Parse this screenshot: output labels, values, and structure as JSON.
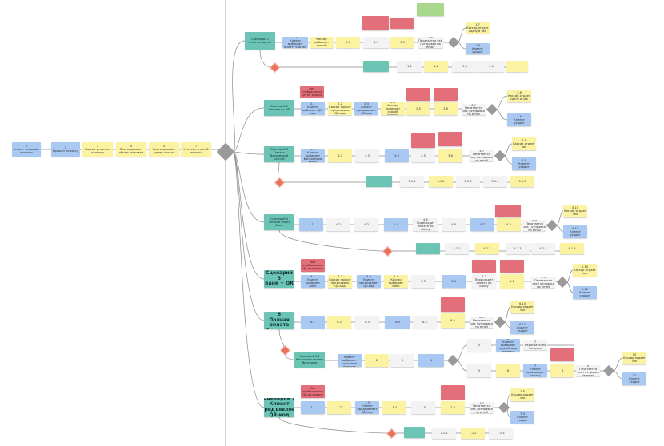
{
  "colors": {
    "client": "#a9c8f2",
    "cashier": "#fbf3a2",
    "system": "#f3f3f3",
    "problem": "#e26f79",
    "scenario": "#6cc4b4",
    "note": "#a9d88c"
  },
  "nodes": [
    {
      "k": "b",
      "t": "1\nКлиент заправил топливо"
    },
    {
      "k": "b",
      "t": "2\nПрошел на кассу"
    },
    {
      "k": "y",
      "t": "3\nКассир уточняет колонку"
    },
    {
      "k": "y",
      "t": "4\nПроговаривает объем заправки"
    },
    {
      "k": "y",
      "t": "5\nПроговаривает сумму оплаты"
    },
    {
      "k": "y",
      "t": "7\nУточняет способ оплаты"
    },
    {
      "k": "t",
      "t": "Сценарий 1\nОплата картой"
    },
    {
      "k": "b",
      "t": "1.1\nКлиент выбирает оплату картой"
    },
    {
      "k": "y",
      "t": "1.2\nКассир выбирает способ оплаты"
    },
    {
      "k": "y",
      "t": "1.3"
    },
    {
      "k": "w",
      "t": "1.4"
    },
    {
      "k": "y",
      "t": "1.5"
    },
    {
      "k": "w",
      "t": "1.6\nПечатается чек / отправка на email"
    },
    {
      "k": "y",
      "t": "1.7\nКассир отдает сдачу и чек"
    },
    {
      "k": "b",
      "t": "1.8\nКлиент уходит"
    },
    {
      "k": "r",
      "t": ""
    },
    {
      "k": "r",
      "t": ""
    },
    {
      "k": "g",
      "t": ""
    },
    {
      "k": "t",
      "t": ""
    },
    {
      "k": "w",
      "t": "1.1"
    },
    {
      "k": "y",
      "t": "1.2"
    },
    {
      "k": "w",
      "t": "1.3"
    },
    {
      "k": "w",
      "t": "1.4"
    },
    {
      "k": "y",
      "t": ""
    },
    {
      "k": "t",
      "t": "Сценарий 2\nОплата по QR"
    },
    {
      "k": "r",
      "t": "Нет отображения QR на экране"
    },
    {
      "k": "b",
      "t": "2.1\nКлиент выбирает QR-код"
    },
    {
      "k": "y",
      "t": "2.2\nКассир просит предъявить QR-код"
    },
    {
      "k": "b",
      "t": "2.3\nКлиент предъявляет QR-код"
    },
    {
      "k": "y",
      "t": "2.4\nКассир выбирает способ оплаты"
    },
    {
      "k": "y",
      "t": "2.5"
    },
    {
      "k": "r",
      "t": ""
    },
    {
      "k": "y",
      "t": "2.6"
    },
    {
      "k": "r",
      "t": ""
    },
    {
      "k": "w",
      "t": "2.7\nПечатается чек / отправка на email"
    },
    {
      "k": "y",
      "t": "2.8\nКассир отдает сдачу и чек"
    },
    {
      "k": "b",
      "t": "2.9\nКлиент уходит"
    },
    {
      "k": "t",
      "t": "Сценарий 3\nОплата банковской картой"
    },
    {
      "k": "b",
      "t": "3.1\nКлиент выбирает банковскую карту"
    },
    {
      "k": "y",
      "t": "3.2"
    },
    {
      "k": "w",
      "t": "3.3"
    },
    {
      "k": "b",
      "t": "3.4"
    },
    {
      "k": "w",
      "t": "3.5"
    },
    {
      "k": "r",
      "t": ""
    },
    {
      "k": "y",
      "t": "3.6"
    },
    {
      "k": "r",
      "t": ""
    },
    {
      "k": "w",
      "t": "3.7\nПечатается чек / отправка на email"
    },
    {
      "k": "y",
      "t": "3.8\nКассир отдает чек"
    },
    {
      "k": "b",
      "t": "3.9\nКлиент уходит"
    },
    {
      "k": "t",
      "t": ""
    },
    {
      "k": "w",
      "t": "3.1.1"
    },
    {
      "k": "y",
      "t": "3.1.2"
    },
    {
      "k": "w",
      "t": "3.1.3"
    },
    {
      "k": "w",
      "t": "3.1.4"
    },
    {
      "k": "y",
      "t": "3.1.5"
    },
    {
      "k": "t",
      "t": "Сценарий 4\nОплата через Банк"
    },
    {
      "k": "b",
      "t": "4.1"
    },
    {
      "k": "w",
      "t": "4.2"
    },
    {
      "k": "w",
      "t": "4.3"
    },
    {
      "k": "b",
      "t": "4.4"
    },
    {
      "k": "w",
      "t": "4.5\nПроисходит оплата по Банку"
    },
    {
      "k": "w",
      "t": "4.6"
    },
    {
      "k": "b",
      "t": "4.7"
    },
    {
      "k": "y",
      "t": "4.8"
    },
    {
      "k": "r",
      "t": ""
    },
    {
      "k": "w",
      "t": "4.9\nПечатается чек / отправка на email"
    },
    {
      "k": "y",
      "t": "4.10\nКассир отдает чек"
    },
    {
      "k": "b",
      "t": "4.11\nКлиент уходит"
    },
    {
      "k": "t",
      "t": ""
    },
    {
      "k": "w",
      "t": "4.1.1"
    },
    {
      "k": "y",
      "t": "4.1.2"
    },
    {
      "k": "w",
      "t": "4.1.3"
    },
    {
      "k": "w",
      "t": "4.1.4"
    },
    {
      "k": "y",
      "t": "4.1.5"
    },
    {
      "k": "t",
      "t": "Сценарий 5\nБанк + QR"
    },
    {
      "k": "r",
      "t": "Нет отображения QR на экране"
    },
    {
      "k": "b",
      "t": "5.1\nКлиент выбирает Банк"
    },
    {
      "k": "y",
      "t": "5.2\nКассир просит предъявить QR-код"
    },
    {
      "k": "b",
      "t": "5.3\nКлиент предъявляет QR-код"
    },
    {
      "k": "y",
      "t": "5.4\nКассир выбирает Банк"
    },
    {
      "k": "w",
      "t": "5.5"
    },
    {
      "k": "b",
      "t": "5.6"
    },
    {
      "k": "w",
      "t": "5.7\nПроисходит оплата по Банку"
    },
    {
      "k": "r",
      "t": ""
    },
    {
      "k": "y",
      "t": "5.8"
    },
    {
      "k": "r",
      "t": ""
    },
    {
      "k": "w",
      "t": "5.9\nПечатается чек / отправка на email"
    },
    {
      "k": "y",
      "t": "5.10\nКассир отдает чек"
    },
    {
      "k": "b",
      "t": "5.11\nКлиент уходит"
    },
    {
      "k": "t",
      "t": "Сценарий 6\nПолная оплата бонусами"
    },
    {
      "k": "b",
      "t": "6.1"
    },
    {
      "k": "y",
      "t": "6.2"
    },
    {
      "k": "w",
      "t": "6.3"
    },
    {
      "k": "b",
      "t": "6.4"
    },
    {
      "k": "w",
      "t": "6.5"
    },
    {
      "k": "y",
      "t": "6.6"
    },
    {
      "k": "r",
      "t": ""
    },
    {
      "k": "w",
      "t": "6.9\nПечатается чек / отправка на email"
    },
    {
      "k": "y",
      "t": "6.10\nКассир отдает чек"
    },
    {
      "k": "b",
      "t": "6.11\nКлиент уходит"
    },
    {
      "k": "t",
      "t": "Сценарий 6.1\nЧастичная оплата бонусами"
    },
    {
      "k": "b",
      "t": "1\nКлиент выбирает списание бонусов"
    },
    {
      "k": "y",
      "t": "2"
    },
    {
      "k": "w",
      "t": "3"
    },
    {
      "k": "b",
      "t": "4"
    },
    {
      "k": "w",
      "t": "5"
    },
    {
      "k": "b",
      "t": "6\nКлиент выбирает другой вид оплаты"
    },
    {
      "k": "w",
      "t": "7\nНедостаточно бонусов"
    },
    {
      "k": "r",
      "t": ""
    },
    {
      "k": "w",
      "t": "5"
    },
    {
      "k": "y",
      "t": "6"
    },
    {
      "k": "b",
      "t": "7\nКлиент производит оплату"
    },
    {
      "k": "y",
      "t": "8"
    },
    {
      "k": "w",
      "t": "9\nПечатается чек / отправка на email"
    },
    {
      "k": "y",
      "t": "10\nКассир отдает чек"
    },
    {
      "k": "b",
      "t": "11\nКлиент уходит"
    },
    {
      "k": "t",
      "t": "Сценарий 7\nКлиент предъявляет QR-код"
    },
    {
      "k": "r",
      "t": "Нет отображения QR на экране"
    },
    {
      "k": "b",
      "t": "7.1"
    },
    {
      "k": "y",
      "t": "7.2"
    },
    {
      "k": "b",
      "t": "7.3\nКлиент предъявляет QR-код"
    },
    {
      "k": "y",
      "t": "7.4"
    },
    {
      "k": "w",
      "t": "7.5"
    },
    {
      "k": "y",
      "t": "7.6"
    },
    {
      "k": "r",
      "t": ""
    },
    {
      "k": "w",
      "t": "7.7\nПечатается чек / отправка на email"
    },
    {
      "k": "y",
      "t": "7.8\nКассир отдает чек"
    },
    {
      "k": "b",
      "t": "7.9\nКлиент уходит"
    },
    {
      "k": "t",
      "t": ""
    },
    {
      "k": "w",
      "t": "7.1.1"
    },
    {
      "k": "y",
      "t": "7.1.2"
    },
    {
      "k": "w",
      "t": "7.1.3"
    }
  ]
}
